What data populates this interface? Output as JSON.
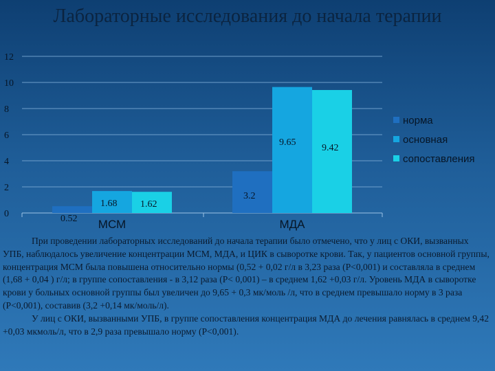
{
  "title": "Лабораторные исследования до начала терапии",
  "chart_data": {
    "type": "bar",
    "categories": [
      "МСМ",
      "МДА"
    ],
    "series": [
      {
        "name": "норма",
        "values": [
          0.52,
          3.2
        ],
        "color": "#1f6fc0",
        "labels": [
          "0.52",
          "3.2"
        ]
      },
      {
        "name": "основная",
        "values": [
          1.68,
          9.65
        ],
        "color": "#15a6e0",
        "labels": [
          "1.68",
          "9.65"
        ]
      },
      {
        "name": "сопоставления",
        "values": [
          1.62,
          9.42
        ],
        "color": "#1ad0e6",
        "labels": [
          "1.62",
          "9.42"
        ]
      }
    ],
    "yticks": [
      "0",
      "2",
      "4",
      "6",
      "8",
      "10",
      "12"
    ],
    "ylim": [
      0,
      12
    ],
    "grid": true,
    "legend": "right"
  },
  "text": {
    "p1": "При проведении лабораторных исследований до начала терапии было отмечено, что у лиц с ОКИ, вызванных УПБ, наблюдалось увеличение концентрации МСМ, МДА, и ЦИК в сыворотке крови. Так, у пациентов основной группы, концентрация МСМ была повышена относительно нормы (0,52 + 0,02 г/л в 3,23 раза (Р<0,001) и составляла в среднем (1,68 + 0,04 ) г/л; в группе сопоставления - в 3,12 раза (Р< 0,001) – в среднем 1,62 +0,03 г/л. Уровень МДА в сыворотке крови у больных основной группы был увеличен до 9,65 + 0,3 мк/моль /л, что в среднем превышало норму в 3 раза (Р<0,001), составив (3,2 +0,14 мк/моль/л).",
    "p2": "У лиц с ОКИ, вызванными УПБ, в группе сопоставления концентрация МДА до лечения равнялась в среднем 9,42 +0,03 мкмоль/л, что в 2,9 раза превышало норму (Р<0,001)."
  }
}
